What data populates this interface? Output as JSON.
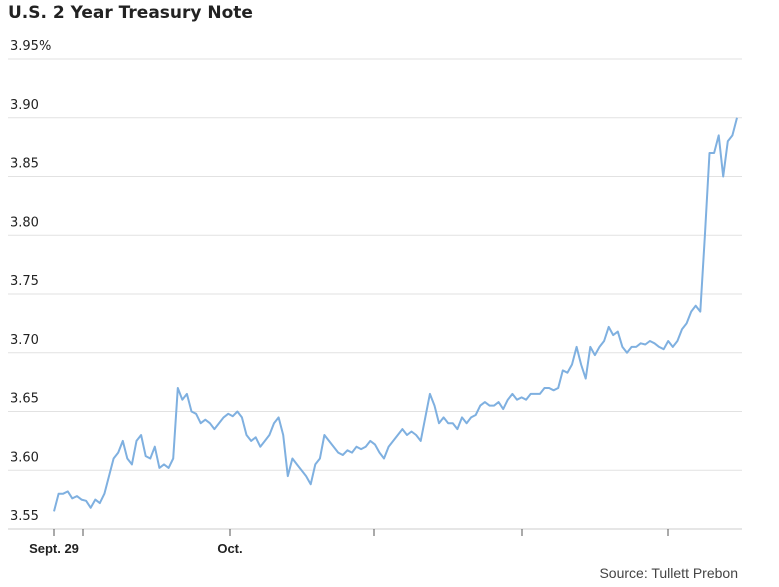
{
  "chart_data": {
    "type": "line",
    "title": "U.S. 2 Year Treasury Note",
    "source": "Source: Tullett Prebon",
    "xlabel": "",
    "ylabel": "",
    "ylim": [
      3.55,
      3.95
    ],
    "y_ticks": [
      {
        "value": 3.95,
        "label": "3.95%"
      },
      {
        "value": 3.9,
        "label": "3.90"
      },
      {
        "value": 3.85,
        "label": "3.85"
      },
      {
        "value": 3.8,
        "label": "3.80"
      },
      {
        "value": 3.75,
        "label": "3.75"
      },
      {
        "value": 3.7,
        "label": "3.70"
      },
      {
        "value": 3.65,
        "label": "3.65"
      },
      {
        "value": 3.6,
        "label": "3.60"
      },
      {
        "value": 3.55,
        "label": "3.55"
      }
    ],
    "x_tick_labels": [
      "Sept. 29",
      "Oct."
    ],
    "grid": true,
    "color": "#7fb0e0",
    "series": [
      {
        "name": "U.S. 2 Year Treasury Note yield",
        "values": [
          3.565,
          3.58,
          3.58,
          3.582,
          3.576,
          3.578,
          3.575,
          3.574,
          3.568,
          3.575,
          3.572,
          3.58,
          3.595,
          3.61,
          3.615,
          3.625,
          3.61,
          3.605,
          3.625,
          3.63,
          3.612,
          3.61,
          3.62,
          3.602,
          3.605,
          3.602,
          3.61,
          3.67,
          3.66,
          3.665,
          3.65,
          3.648,
          3.64,
          3.643,
          3.64,
          3.635,
          3.64,
          3.645,
          3.648,
          3.646,
          3.65,
          3.645,
          3.63,
          3.625,
          3.628,
          3.62,
          3.625,
          3.63,
          3.64,
          3.645,
          3.63,
          3.595,
          3.61,
          3.605,
          3.6,
          3.595,
          3.588,
          3.605,
          3.61,
          3.63,
          3.625,
          3.62,
          3.615,
          3.613,
          3.617,
          3.615,
          3.62,
          3.618,
          3.62,
          3.625,
          3.622,
          3.615,
          3.61,
          3.62,
          3.625,
          3.63,
          3.635,
          3.63,
          3.633,
          3.63,
          3.625,
          3.645,
          3.665,
          3.655,
          3.64,
          3.645,
          3.64,
          3.64,
          3.635,
          3.645,
          3.64,
          3.645,
          3.647,
          3.655,
          3.658,
          3.655,
          3.655,
          3.658,
          3.652,
          3.66,
          3.665,
          3.66,
          3.662,
          3.66,
          3.665,
          3.665,
          3.665,
          3.67,
          3.67,
          3.668,
          3.67,
          3.685,
          3.683,
          3.69,
          3.705,
          3.69,
          3.678,
          3.705,
          3.698,
          3.705,
          3.71,
          3.722,
          3.715,
          3.718,
          3.705,
          3.7,
          3.705,
          3.705,
          3.708,
          3.707,
          3.71,
          3.708,
          3.705,
          3.703,
          3.71,
          3.705,
          3.71,
          3.72,
          3.725,
          3.735,
          3.74,
          3.735,
          3.8,
          3.87,
          3.87,
          3.885,
          3.85,
          3.88,
          3.885,
          3.9
        ]
      }
    ]
  }
}
